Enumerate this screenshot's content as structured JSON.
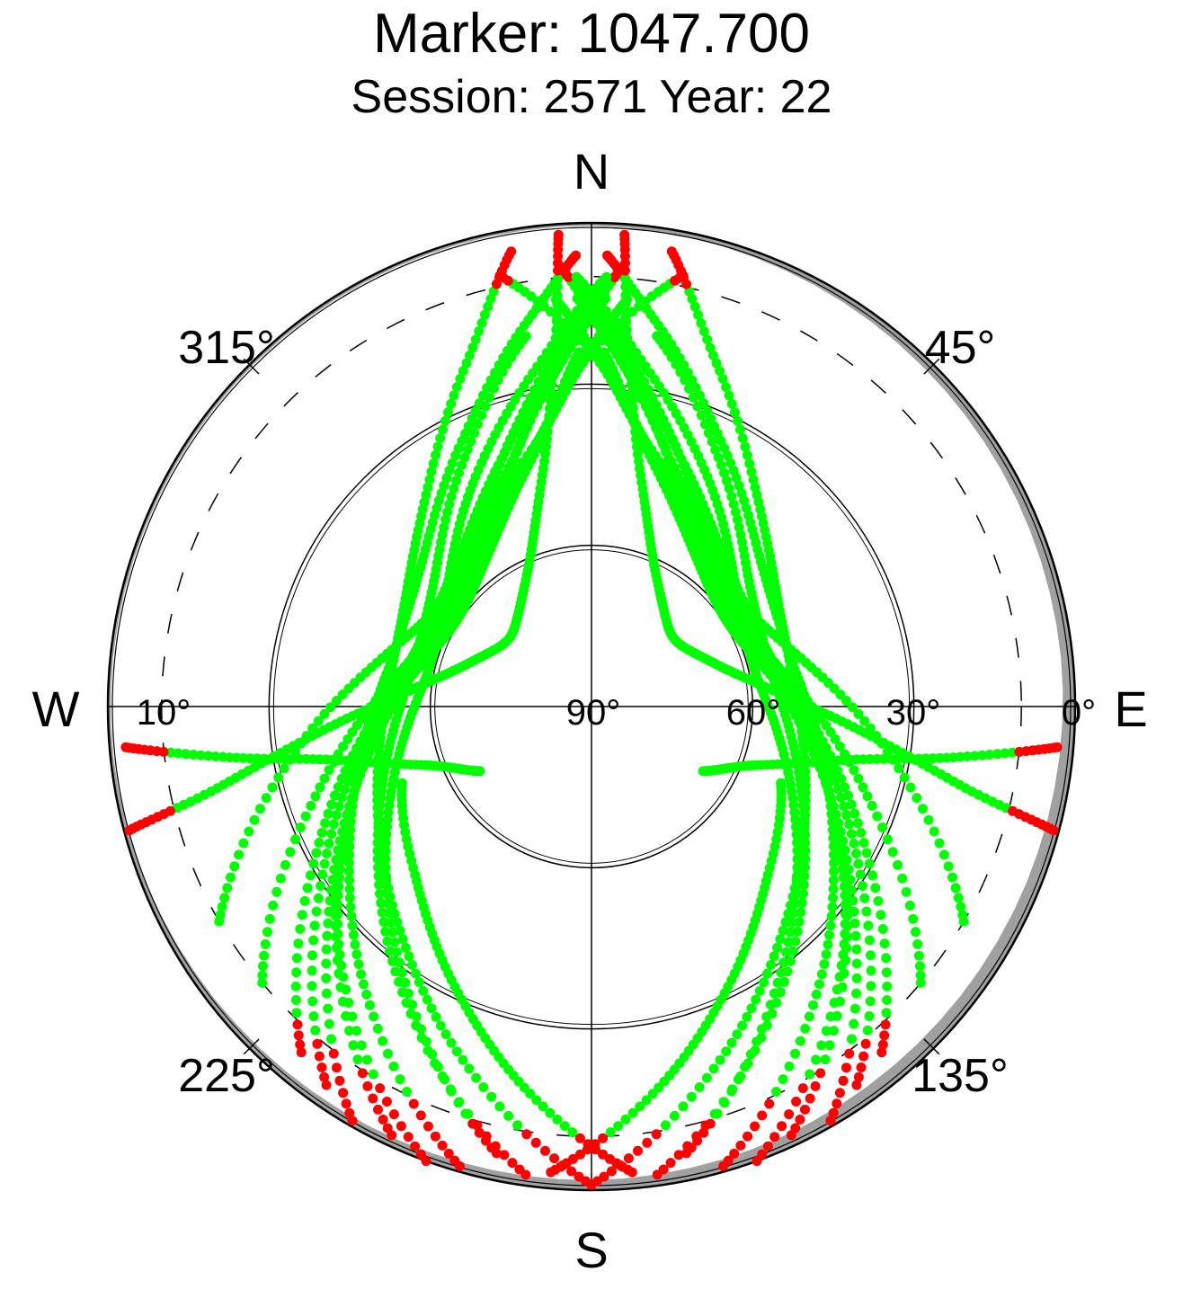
{
  "title": "Marker: 1047.700",
  "subtitle": "Session: 2571 Year: 22",
  "compass": {
    "north": "N",
    "south": "S",
    "east": "E",
    "west": "W"
  },
  "azimuth_labels": [
    "45°",
    "135°",
    "225°",
    "315°"
  ],
  "elevation_labels": [
    "0°",
    "30°",
    "60°",
    "90°",
    "10°"
  ],
  "colors": {
    "track": "#00ff00",
    "low": "#ff0000",
    "horizon_mask": "#a0a0a0",
    "grid": "#000000"
  },
  "chart_data": {
    "type": "scatter",
    "projection": "polar-skyplot",
    "title": "Marker: 1047.700",
    "subtitle": "Session: 2571 Year: 22",
    "radial_axis": {
      "quantity": "elevation",
      "range": [
        0,
        90
      ],
      "ticks": [
        0,
        30,
        60,
        90
      ],
      "labels": [
        "0°",
        "30°",
        "60°",
        "90°"
      ]
    },
    "angular_axis": {
      "quantity": "azimuth",
      "range": [
        0,
        360
      ],
      "zero": "north",
      "direction": "clockwise",
      "labels": [
        "45°",
        "135°",
        "225°",
        "315°"
      ]
    },
    "cutoff_elevation": {
      "value": 10,
      "label": "10°",
      "style": "dashed"
    },
    "grid": true,
    "legend": "none",
    "tracks_note": "satellite passes; elevations below 10° drawn red, above drawn green",
    "tracks": [
      [
        [
          205,
          2
        ],
        [
          228,
          26
        ],
        [
          250,
          43
        ],
        [
          275,
          53
        ],
        [
          300,
          57
        ],
        [
          325,
          53
        ],
        [
          348,
          40
        ],
        [
          360,
          24
        ],
        [
          12,
          8
        ]
      ],
      [
        [
          210,
          1
        ],
        [
          232,
          28
        ],
        [
          255,
          46
        ],
        [
          280,
          56
        ],
        [
          303,
          59
        ],
        [
          326,
          54
        ],
        [
          346,
          42
        ],
        [
          357,
          28
        ],
        [
          5,
          14
        ]
      ],
      [
        [
          215,
          4
        ],
        [
          238,
          31
        ],
        [
          262,
          48
        ],
        [
          286,
          58
        ],
        [
          308,
          60
        ],
        [
          330,
          54
        ],
        [
          348,
          41
        ],
        [
          358,
          24
        ]
      ],
      [
        [
          200,
          0
        ],
        [
          224,
          23
        ],
        [
          245,
          40
        ],
        [
          268,
          51
        ],
        [
          292,
          56
        ],
        [
          318,
          53
        ],
        [
          340,
          41
        ],
        [
          354,
          25
        ],
        [
          3,
          10
        ]
      ],
      [
        [
          220,
          6
        ],
        [
          242,
          32
        ],
        [
          266,
          49
        ],
        [
          290,
          57
        ],
        [
          314,
          57
        ],
        [
          336,
          48
        ],
        [
          352,
          30
        ],
        [
          2,
          14
        ]
      ],
      [
        [
          196,
          1
        ],
        [
          218,
          22
        ],
        [
          240,
          38
        ],
        [
          264,
          48
        ],
        [
          288,
          52
        ],
        [
          312,
          48
        ],
        [
          334,
          35
        ],
        [
          350,
          18
        ],
        [
          358,
          6
        ]
      ],
      [
        [
          230,
          10
        ],
        [
          252,
          36
        ],
        [
          276,
          52
        ],
        [
          300,
          58
        ],
        [
          322,
          54
        ],
        [
          342,
          42
        ],
        [
          356,
          24
        ],
        [
          4,
          8
        ]
      ],
      [
        [
          188,
          2
        ],
        [
          212,
          25
        ],
        [
          236,
          42
        ],
        [
          260,
          52
        ],
        [
          285,
          56
        ],
        [
          310,
          52
        ],
        [
          333,
          38
        ],
        [
          350,
          20
        ]
      ],
      [
        [
          240,
          10
        ],
        [
          260,
          33
        ],
        [
          283,
          50
        ],
        [
          306,
          56
        ],
        [
          328,
          50
        ],
        [
          345,
          36
        ],
        [
          358,
          18
        ]
      ],
      [
        [
          192,
          5
        ],
        [
          214,
          28
        ],
        [
          238,
          45
        ],
        [
          262,
          55
        ],
        [
          286,
          59
        ],
        [
          310,
          55
        ],
        [
          332,
          43
        ],
        [
          350,
          27
        ],
        [
          2,
          10
        ]
      ],
      [
        [
          155,
          2
        ],
        [
          132,
          26
        ],
        [
          110,
          43
        ],
        [
          85,
          53
        ],
        [
          60,
          57
        ],
        [
          35,
          53
        ],
        [
          12,
          40
        ],
        [
          0,
          24
        ],
        [
          348,
          8
        ]
      ],
      [
        [
          150,
          1
        ],
        [
          128,
          28
        ],
        [
          105,
          46
        ],
        [
          80,
          56
        ],
        [
          57,
          59
        ],
        [
          34,
          54
        ],
        [
          14,
          42
        ],
        [
          3,
          28
        ],
        [
          355,
          14
        ]
      ],
      [
        [
          145,
          4
        ],
        [
          122,
          31
        ],
        [
          98,
          48
        ],
        [
          74,
          58
        ],
        [
          52,
          60
        ],
        [
          30,
          54
        ],
        [
          12,
          41
        ],
        [
          2,
          24
        ]
      ],
      [
        [
          160,
          0
        ],
        [
          136,
          23
        ],
        [
          115,
          40
        ],
        [
          92,
          51
        ],
        [
          68,
          56
        ],
        [
          42,
          53
        ],
        [
          20,
          41
        ],
        [
          6,
          25
        ],
        [
          357,
          10
        ]
      ],
      [
        [
          140,
          6
        ],
        [
          118,
          32
        ],
        [
          94,
          49
        ],
        [
          70,
          57
        ],
        [
          46,
          57
        ],
        [
          24,
          48
        ],
        [
          8,
          30
        ],
        [
          358,
          14
        ]
      ],
      [
        [
          164,
          1
        ],
        [
          142,
          22
        ],
        [
          120,
          38
        ],
        [
          96,
          48
        ],
        [
          72,
          52
        ],
        [
          48,
          48
        ],
        [
          26,
          35
        ],
        [
          10,
          18
        ],
        [
          2,
          6
        ]
      ],
      [
        [
          130,
          10
        ],
        [
          108,
          36
        ],
        [
          84,
          52
        ],
        [
          60,
          58
        ],
        [
          38,
          54
        ],
        [
          18,
          42
        ],
        [
          4,
          24
        ],
        [
          356,
          8
        ]
      ],
      [
        [
          172,
          2
        ],
        [
          148,
          25
        ],
        [
          124,
          42
        ],
        [
          100,
          52
        ],
        [
          75,
          56
        ],
        [
          50,
          52
        ],
        [
          27,
          38
        ],
        [
          10,
          20
        ]
      ],
      [
        [
          120,
          10
        ],
        [
          100,
          33
        ],
        [
          77,
          50
        ],
        [
          54,
          56
        ],
        [
          32,
          50
        ],
        [
          15,
          36
        ],
        [
          2,
          18
        ]
      ],
      [
        [
          168,
          5
        ],
        [
          146,
          28
        ],
        [
          122,
          45
        ],
        [
          98,
          55
        ],
        [
          74,
          59
        ],
        [
          50,
          55
        ],
        [
          28,
          43
        ],
        [
          10,
          27
        ],
        [
          358,
          10
        ]
      ],
      [
        [
          180,
          1
        ],
        [
          200,
          20
        ],
        [
          222,
          36
        ],
        [
          248,
          47
        ],
        [
          275,
          52
        ],
        [
          300,
          50
        ],
        [
          322,
          40
        ],
        [
          340,
          22
        ],
        [
          350,
          4
        ]
      ],
      [
        [
          180,
          1
        ],
        [
          160,
          20
        ],
        [
          138,
          36
        ],
        [
          112,
          47
        ],
        [
          85,
          52
        ],
        [
          60,
          50
        ],
        [
          38,
          40
        ],
        [
          20,
          22
        ],
        [
          10,
          4
        ]
      ],
      [
        [
          255,
          1
        ],
        [
          258,
          20
        ],
        [
          265,
          40
        ],
        [
          275,
          56
        ],
        [
          290,
          66
        ],
        [
          312,
          70
        ],
        [
          335,
          62
        ],
        [
          348,
          46
        ],
        [
          354,
          24
        ],
        [
          356,
          2
        ]
      ],
      [
        [
          105,
          1
        ],
        [
          102,
          20
        ],
        [
          95,
          40
        ],
        [
          85,
          56
        ],
        [
          70,
          66
        ],
        [
          48,
          70
        ],
        [
          25,
          62
        ],
        [
          12,
          46
        ],
        [
          6,
          24
        ],
        [
          4,
          2
        ]
      ],
      [
        [
          265,
          3
        ],
        [
          262,
          22
        ],
        [
          258,
          42
        ],
        [
          250,
          58
        ],
        [
          240,
          66
        ]
      ],
      [
        [
          95,
          3
        ],
        [
          98,
          22
        ],
        [
          102,
          42
        ],
        [
          110,
          58
        ],
        [
          120,
          66
        ]
      ],
      [
        [
          175,
          3
        ],
        [
          190,
          18
        ],
        [
          206,
          32
        ],
        [
          225,
          44
        ],
        [
          248,
          52
        ]
      ],
      [
        [
          185,
          3
        ],
        [
          170,
          18
        ],
        [
          154,
          32
        ],
        [
          135,
          44
        ],
        [
          112,
          52
        ]
      ]
    ]
  }
}
